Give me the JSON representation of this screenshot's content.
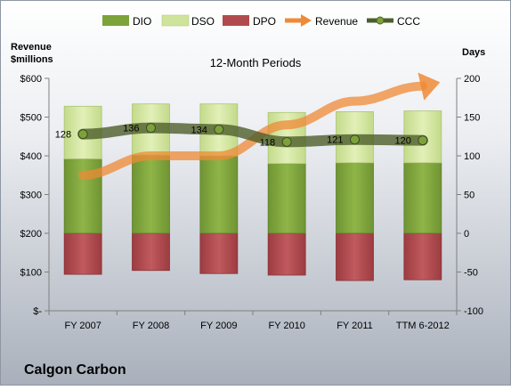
{
  "chart_data": {
    "type": "bar",
    "title": "12-Month Periods",
    "company": "Calgon Carbon",
    "left_axis_label": [
      "Revenue",
      "$millions"
    ],
    "right_axis_label": "Days",
    "categories": [
      "FY 2007",
      "FY 2008",
      "FY 2009",
      "FY 2010",
      "FY 2011",
      "TTM 6-2012"
    ],
    "left_ticks": [
      "$-",
      "$100",
      "$200",
      "$300",
      "$400",
      "$500",
      "$600"
    ],
    "right_ticks": [
      "-100",
      "-50",
      "0",
      "50",
      "100",
      "150",
      "200"
    ],
    "ylim_days": [
      -100,
      200
    ],
    "ylim_revenue": [
      0,
      600
    ],
    "legend": [
      "DIO",
      "DSO",
      "DPO",
      "Revenue",
      "CCC"
    ],
    "series": [
      {
        "name": "DIO",
        "axis": "days",
        "values": [
          96,
          101,
          100,
          90,
          91,
          91
        ]
      },
      {
        "name": "DSO",
        "axis": "days",
        "values": [
          68,
          66,
          67,
          66,
          66,
          67
        ]
      },
      {
        "name": "DPO",
        "axis": "days",
        "values": [
          -53,
          -48,
          -52,
          -54,
          -61,
          -60
        ]
      },
      {
        "name": "Revenue",
        "axis": "revenue",
        "values": [
          350,
          400,
          400,
          480,
          541,
          580
        ]
      },
      {
        "name": "CCC",
        "axis": "days",
        "values": [
          128,
          136,
          134,
          118,
          121,
          120
        ]
      }
    ],
    "ccc_labels": [
      "128",
      "136",
      "134",
      "118",
      "121",
      "120"
    ],
    "colors": {
      "DIO": "#7ca23a",
      "DSO": "#cfe39a",
      "DPO": "#b14a4e",
      "Revenue": "#ef8a36",
      "CCC": "#4e5e2b"
    }
  }
}
